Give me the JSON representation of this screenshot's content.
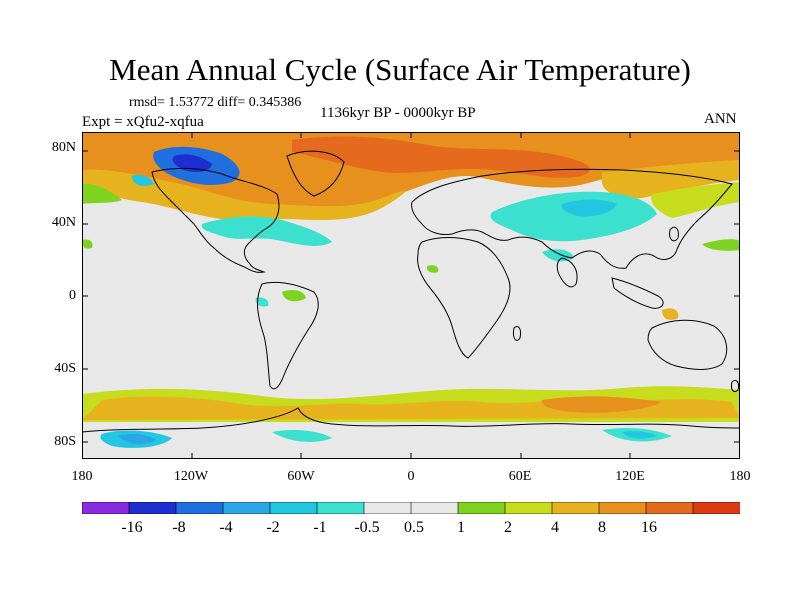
{
  "title": "Mean Annual Cycle (Surface Air Temperature)",
  "stats": "rmsd= 1.53772 diff= 0.345386",
  "experiment": "Expt = xQfu2-xqfua",
  "period": "1136kyr BP - 0000kyr BP",
  "season": "ANN",
  "lat_labels": [
    "80N",
    "40N",
    "0",
    "40S",
    "80S"
  ],
  "lon_labels": [
    "180",
    "120W",
    "60W",
    "0",
    "60E",
    "120E",
    "180"
  ],
  "colorbar": {
    "colors": [
      "#8a2be2",
      "#1e2fd0",
      "#1f6fe0",
      "#2aa6e6",
      "#22c6e0",
      "#3be0cf",
      "#e8e8e8",
      "#e8e8e8",
      "#7ed321",
      "#c8dc1e",
      "#e6b31e",
      "#e8901e",
      "#e66a1e",
      "#dc3a12"
    ],
    "labels": [
      "-16",
      "-8",
      "-4",
      "-2",
      "-1",
      "-0.5",
      "0.5",
      "1",
      "2",
      "4",
      "8",
      "16"
    ]
  },
  "field_colors": {
    "background": "#e8e8e8",
    "cool_1": "#3be0cf",
    "cool_2": "#22c6e0",
    "cool_3": "#2aa6e6",
    "cool_4": "#1f6fe0",
    "cool_5": "#1e2fd0",
    "warm_1": "#7ed321",
    "warm_2": "#c8dc1e",
    "warm_3": "#e6b31e",
    "warm_4": "#e8901e",
    "warm_5": "#e66a1e"
  }
}
